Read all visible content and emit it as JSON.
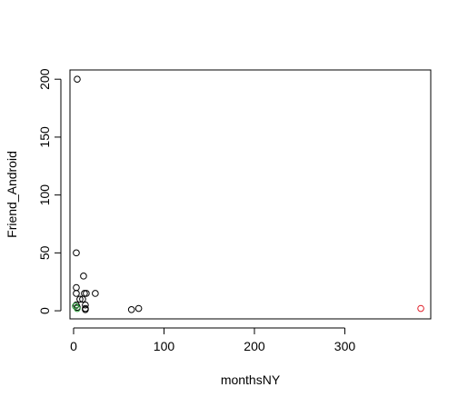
{
  "chart_data": {
    "type": "scatter",
    "title": "",
    "xlabel": "monthsNY",
    "ylabel": "Friend_Android",
    "xlim": [
      -4,
      395
    ],
    "ylim": [
      -7,
      208
    ],
    "xticks": [
      0,
      100,
      200,
      300
    ],
    "yticks": [
      0,
      50,
      100,
      150,
      200
    ],
    "grid": false,
    "legend": "none",
    "colors": {
      "default_point": "#000000",
      "highlight_red": "#e0202a",
      "highlight_green": "#2a9d3a"
    },
    "points": [
      {
        "x": 4,
        "y": 200,
        "color": "default_point"
      },
      {
        "x": 3,
        "y": 50,
        "color": "default_point"
      },
      {
        "x": 11,
        "y": 30,
        "color": "default_point"
      },
      {
        "x": 3,
        "y": 20,
        "color": "default_point"
      },
      {
        "x": 3,
        "y": 15,
        "color": "default_point"
      },
      {
        "x": 12,
        "y": 15,
        "color": "default_point"
      },
      {
        "x": 14,
        "y": 15,
        "color": "default_point"
      },
      {
        "x": 24,
        "y": 15,
        "color": "default_point"
      },
      {
        "x": 7,
        "y": 10,
        "color": "default_point"
      },
      {
        "x": 10,
        "y": 10,
        "color": "default_point"
      },
      {
        "x": 13,
        "y": 5,
        "color": "default_point"
      },
      {
        "x": 3,
        "y": 5,
        "color": "default_point"
      },
      {
        "x": 4,
        "y": 3,
        "color": "default_point"
      },
      {
        "x": 13,
        "y": 2,
        "color": "default_point"
      },
      {
        "x": 2,
        "y": 4,
        "color": "highlight_green"
      },
      {
        "x": 4,
        "y": 2,
        "color": "highlight_green"
      },
      {
        "x": 72,
        "y": 2,
        "color": "default_point"
      },
      {
        "x": 64,
        "y": 1,
        "color": "default_point"
      },
      {
        "x": 13,
        "y": 1,
        "color": "default_point"
      },
      {
        "x": 384,
        "y": 2,
        "color": "highlight_red"
      }
    ]
  }
}
